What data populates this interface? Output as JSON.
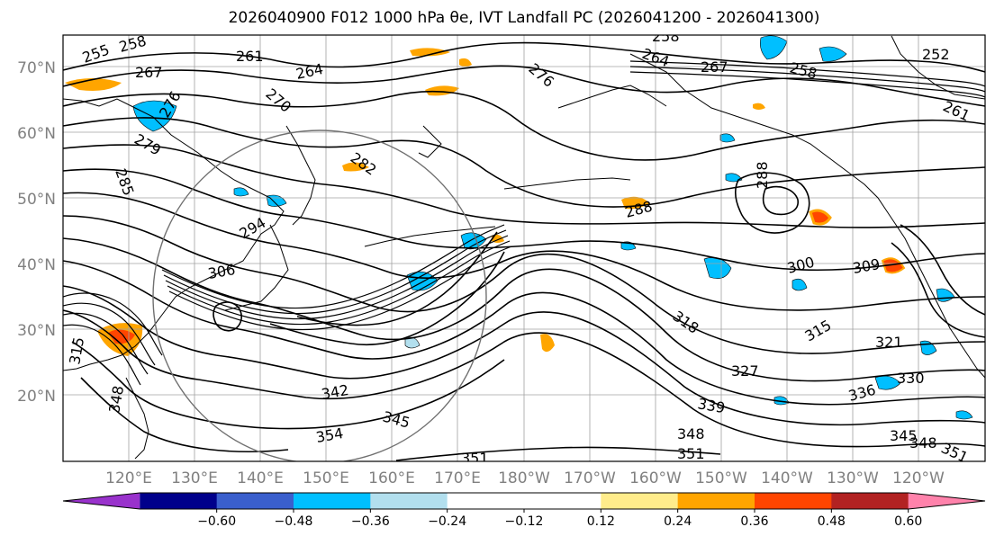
{
  "title": "2026040900 F012 1000 hPa θe, IVT Landfall PC (2026041200 - 2026041300)",
  "lat_labels": [
    "70°N",
    "60°N",
    "50°N",
    "40°N",
    "30°N",
    "20°N"
  ],
  "lon_labels": [
    "120°E",
    "130°E",
    "140°E",
    "150°E",
    "160°E",
    "170°E",
    "180°W",
    "170°W",
    "160°W",
    "150°W",
    "140°W",
    "130°W",
    "120°W"
  ],
  "contour_labels": [
    {
      "text": "255"
    },
    {
      "text": "258"
    },
    {
      "text": "267"
    },
    {
      "text": "261"
    },
    {
      "text": "264"
    },
    {
      "text": "270"
    },
    {
      "text": "276"
    },
    {
      "text": "279"
    },
    {
      "text": "276"
    },
    {
      "text": "258"
    },
    {
      "text": "264"
    },
    {
      "text": "267"
    },
    {
      "text": "258"
    },
    {
      "text": "252"
    },
    {
      "text": "261"
    },
    {
      "text": "282"
    },
    {
      "text": "285"
    },
    {
      "text": "288"
    },
    {
      "text": "288"
    },
    {
      "text": "294"
    },
    {
      "text": "300"
    },
    {
      "text": "306"
    },
    {
      "text": "309"
    },
    {
      "text": "318"
    },
    {
      "text": "315"
    },
    {
      "text": "321"
    },
    {
      "text": "327"
    },
    {
      "text": "330"
    },
    {
      "text": "336"
    },
    {
      "text": "339"
    },
    {
      "text": "342"
    },
    {
      "text": "345"
    },
    {
      "text": "348"
    },
    {
      "text": "351"
    },
    {
      "text": "354"
    },
    {
      "text": "351"
    },
    {
      "text": "345"
    },
    {
      "text": "348"
    },
    {
      "text": "351"
    },
    {
      "text": "315"
    },
    {
      "text": "348"
    }
  ],
  "colorbar": {
    "colors": [
      "#9932cc",
      "#00008b",
      "#3a5fcd",
      "#00bfff",
      "#b2dfee",
      "#ffffff",
      "#ffffff",
      "#ffec8b",
      "#ffa500",
      "#ff4500",
      "#b22222",
      "#ff82ab"
    ],
    "ticks": [
      "−0.60",
      "−0.48",
      "−0.36",
      "−0.24",
      "−0.12",
      "0.12",
      "0.24",
      "0.36",
      "0.48",
      "0.60"
    ]
  }
}
